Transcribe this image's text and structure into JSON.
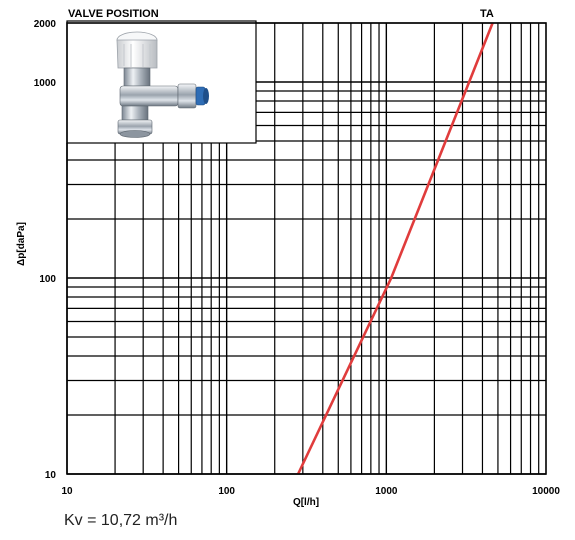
{
  "chart_data": {
    "type": "line",
    "xlabel": "Q[l/h]",
    "ylabel": "Δp[daPa]",
    "x_scale": "log",
    "y_scale": "log",
    "xlim": [
      10,
      10000
    ],
    "ylim": [
      10,
      2000
    ],
    "grid": true,
    "x_ticks": [
      {
        "value": 10,
        "label": "10"
      },
      {
        "value": 100,
        "label": "100"
      },
      {
        "value": 1000,
        "label": "1000"
      },
      {
        "value": 10000,
        "label": "10000"
      }
    ],
    "y_ticks": [
      {
        "value": 10,
        "label": "10"
      },
      {
        "value": 100,
        "label": "100"
      },
      {
        "value": 1000,
        "label": "1000"
      },
      {
        "value": 2000,
        "label": "2000"
      }
    ],
    "series": [
      {
        "name": "TA",
        "color": "#e03c3c",
        "x": [
          280,
          1072,
          4630
        ],
        "y": [
          10,
          100,
          2000
        ]
      }
    ],
    "annotations": {
      "inset_title": "VALVE POSITION",
      "inset_image": "thermostatic-radiator-valve-photo",
      "series_label": "TA"
    }
  },
  "footer": {
    "kv_text": "Kv = 10,72 m³/h"
  }
}
